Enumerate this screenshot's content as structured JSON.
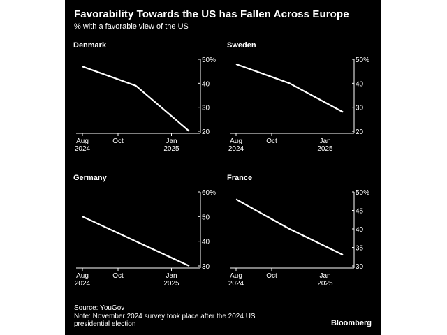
{
  "title": "Favorability Towards the US has Fallen Across Europe",
  "subtitle": "% with a favorable view of the US",
  "source": "Source: YouGov",
  "note": "Note: November 2024 survey took place after the 2024 US presidential election",
  "brand": "Bloomberg",
  "colors": {
    "background": "#000000",
    "line": "#ffffff",
    "axis": "#ffffff"
  },
  "chart_data": [
    {
      "type": "line",
      "title": "Denmark",
      "x": [
        "2024-08",
        "2024-11",
        "2025-02"
      ],
      "xticks": [
        {
          "date": "2024-08",
          "label": [
            "Aug",
            "2024"
          ]
        },
        {
          "date": "2024-10",
          "label": [
            "Oct"
          ]
        },
        {
          "date": "2025-01",
          "label": [
            "Jan",
            "2025"
          ]
        }
      ],
      "series": [
        {
          "values": [
            47,
            39,
            20
          ]
        }
      ],
      "ylim": [
        20,
        50
      ],
      "yticks": [
        "50%",
        "40",
        "30",
        "20"
      ]
    },
    {
      "type": "line",
      "title": "Sweden",
      "x": [
        "2024-08",
        "2024-11",
        "2025-02"
      ],
      "xticks": [
        {
          "date": "2024-08",
          "label": [
            "Aug",
            "2024"
          ]
        },
        {
          "date": "2024-10",
          "label": [
            "Oct"
          ]
        },
        {
          "date": "2025-01",
          "label": [
            "Jan",
            "2025"
          ]
        }
      ],
      "series": [
        {
          "values": [
            48,
            40,
            28
          ]
        }
      ],
      "ylim": [
        20,
        50
      ],
      "yticks": [
        "50%",
        "40",
        "30",
        "20"
      ]
    },
    {
      "type": "line",
      "title": "Germany",
      "x": [
        "2024-08",
        "2024-11",
        "2025-02"
      ],
      "xticks": [
        {
          "date": "2024-08",
          "label": [
            "Aug",
            "2024"
          ]
        },
        {
          "date": "2024-10",
          "label": [
            "Oct"
          ]
        },
        {
          "date": "2025-01",
          "label": [
            "Jan",
            "2025"
          ]
        }
      ],
      "series": [
        {
          "values": [
            50,
            40,
            30
          ]
        }
      ],
      "ylim": [
        30,
        60
      ],
      "yticks": [
        "60%",
        "50",
        "40",
        "30"
      ]
    },
    {
      "type": "line",
      "title": "France",
      "x": [
        "2024-08",
        "2024-11",
        "2025-02"
      ],
      "xticks": [
        {
          "date": "2024-08",
          "label": [
            "Aug",
            "2024"
          ]
        },
        {
          "date": "2024-10",
          "label": [
            "Oct"
          ]
        },
        {
          "date": "2025-01",
          "label": [
            "Jan",
            "2025"
          ]
        }
      ],
      "series": [
        {
          "values": [
            48,
            40,
            33
          ]
        }
      ],
      "ylim": [
        30,
        50
      ],
      "yticks": [
        "50%",
        "45",
        "40",
        "35",
        "30"
      ]
    }
  ]
}
